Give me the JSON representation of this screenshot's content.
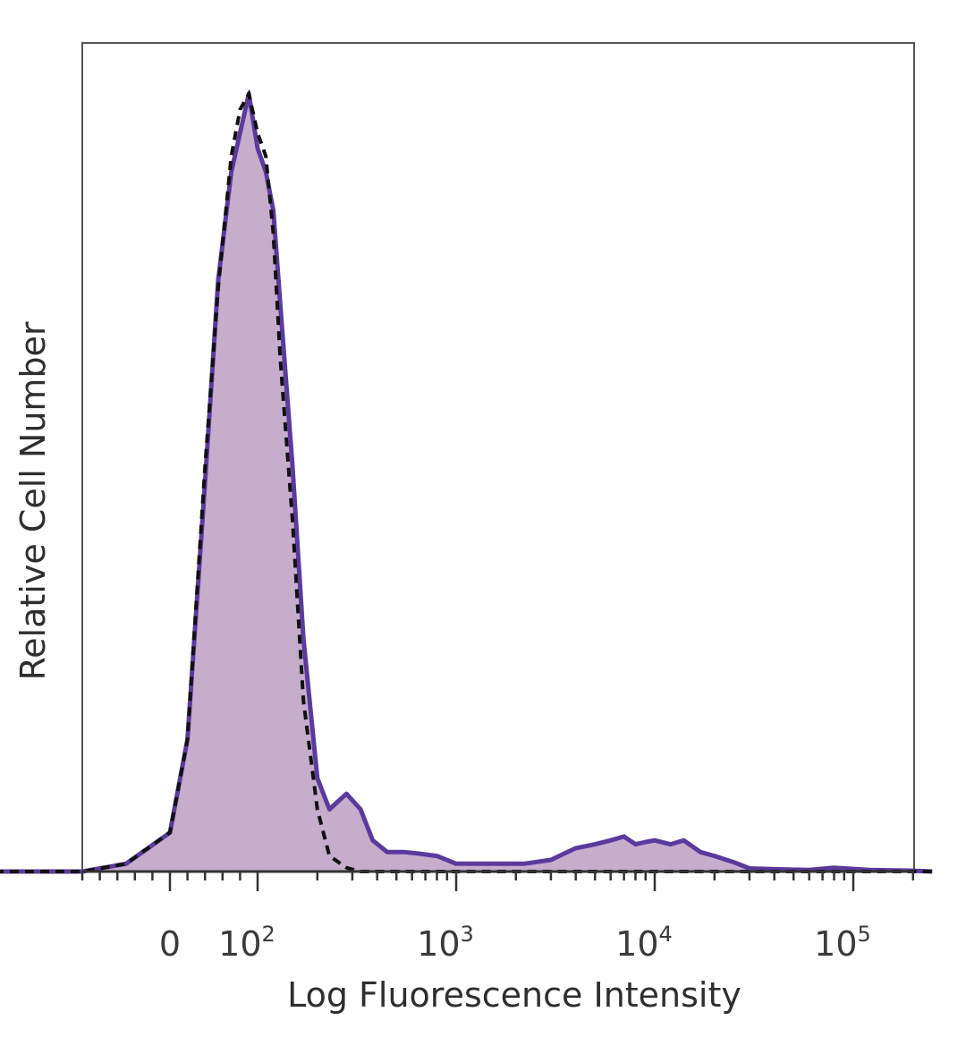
{
  "chart_data": {
    "type": "area",
    "title": "",
    "xlabel": "Log Fluorescence Intensity",
    "ylabel": "Relative Cell Number",
    "x_scale": "log (biexponential, 0 shown)",
    "grid": false,
    "legend": "none",
    "x_ticks": [
      {
        "value": 0,
        "base": "0",
        "exp": ""
      },
      {
        "value": 100,
        "base": "10",
        "exp": "2"
      },
      {
        "value": 1000,
        "base": "10",
        "exp": "3"
      },
      {
        "value": 10000,
        "base": "10",
        "exp": "4"
      },
      {
        "value": 100000,
        "base": "10",
        "exp": "5"
      }
    ],
    "xlim": [
      -200,
      250000
    ],
    "ylim": [
      0,
      100
    ],
    "series": [
      {
        "style": "filled-solid",
        "color": "#5b3a9e",
        "fill": "#c6adcc",
        "x": [
          -200,
          -100,
          -50,
          0,
          20,
          40,
          55,
          70,
          80,
          90,
          100,
          110,
          120,
          130,
          150,
          170,
          200,
          230,
          280,
          330,
          380,
          450,
          550,
          650,
          800,
          1000,
          1300,
          1700,
          2200,
          3000,
          4000,
          5000,
          6000,
          7000,
          8000,
          9000,
          10000,
          12000,
          14000,
          17000,
          20000,
          25000,
          30000,
          40000,
          60000,
          80000,
          120000,
          200000,
          250000
        ],
        "y": [
          0,
          0,
          1,
          5,
          17,
          50,
          76,
          90,
          95,
          100,
          93,
          90,
          85,
          73,
          52,
          30,
          12,
          8,
          10,
          8,
          4,
          2.5,
          2.5,
          2.3,
          2,
          1,
          1,
          1,
          1,
          1.5,
          3,
          3.5,
          4,
          4.5,
          3.5,
          3.8,
          4,
          3.5,
          4,
          2.5,
          2,
          1.2,
          0.4,
          0.3,
          0.2,
          0.5,
          0.2,
          0.1,
          0
        ]
      },
      {
        "style": "dashed",
        "color": "#111111",
        "x": [
          -200,
          -100,
          -50,
          0,
          20,
          40,
          55,
          70,
          80,
          90,
          100,
          110,
          120,
          130,
          150,
          170,
          200,
          230,
          280,
          330,
          380,
          450,
          550,
          650,
          800,
          1000,
          1300,
          1700,
          2200,
          3000,
          4000,
          5000,
          6000,
          7000,
          8000,
          9000,
          10000,
          12000,
          14000,
          17000,
          20000,
          25000,
          30000,
          40000,
          60000,
          80000,
          120000,
          200000,
          250000
        ],
        "y": [
          0,
          0,
          1,
          5,
          17,
          52,
          75,
          92,
          98,
          100,
          95,
          92,
          82,
          66,
          45,
          22,
          8,
          2,
          0.5,
          0,
          0,
          0,
          0,
          0,
          0,
          0,
          0,
          0,
          0,
          0,
          0,
          0,
          0,
          0,
          0,
          0,
          0,
          0,
          0,
          0,
          0,
          0,
          0,
          0,
          0,
          0,
          0,
          0,
          0
        ]
      }
    ]
  }
}
